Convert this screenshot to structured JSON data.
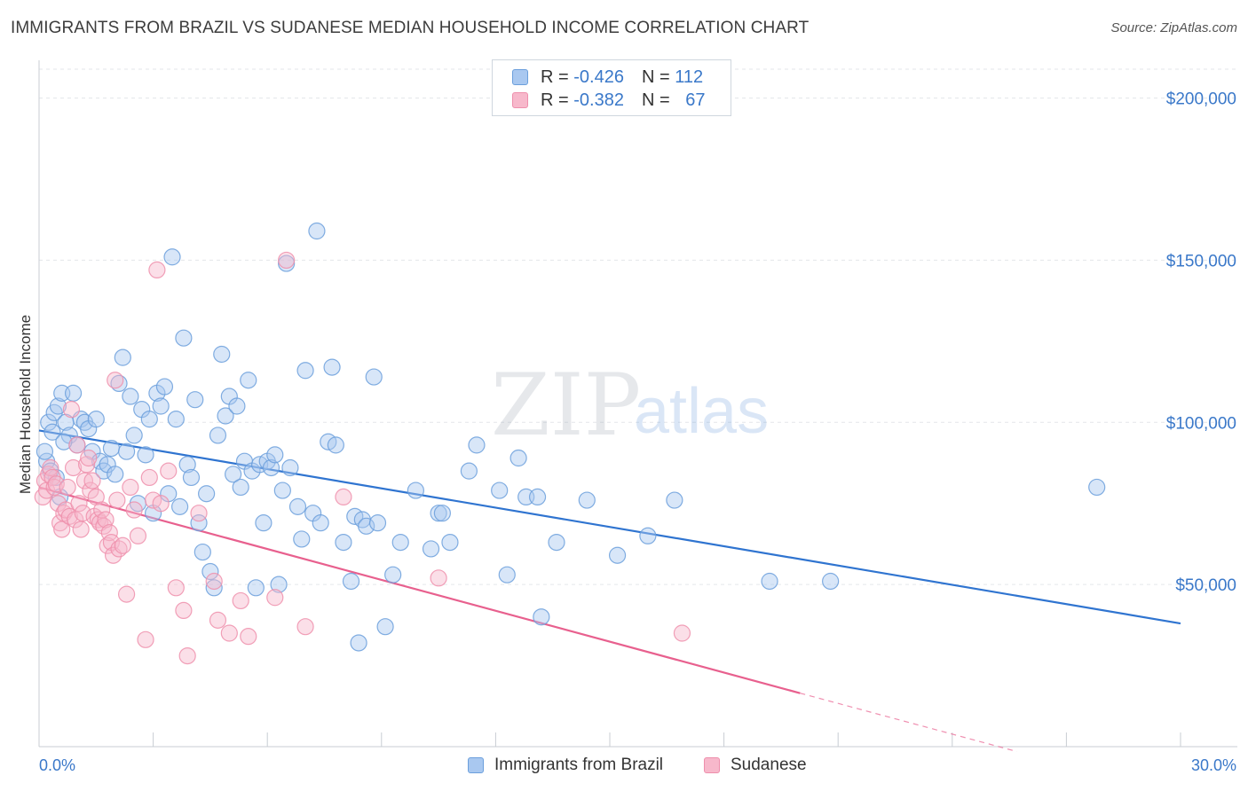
{
  "header": {
    "title": "IMMIGRANTS FROM BRAZIL VS SUDANESE MEDIAN HOUSEHOLD INCOME CORRELATION CHART",
    "source": "Source: ZipAtlas.com"
  },
  "watermark": {
    "zip": "ZIP",
    "atlas": "atlas"
  },
  "legend_stats": [
    {
      "r_label": "R =",
      "r_value": "-0.426",
      "n_label": "N =",
      "n_value": "112"
    },
    {
      "r_label": "R =",
      "r_value": "-0.382",
      "n_label": "N =",
      "n_value": "67"
    }
  ],
  "colors": {
    "brazil_fill": "#a9c8f0",
    "brazil_stroke": "#6b9fdc",
    "brazil_line": "#2f74d0",
    "sudanese_fill": "#f7b8cb",
    "sudanese_stroke": "#ee8fac",
    "sudanese_line": "#e8608e",
    "axis_text": "#3a78c9",
    "grid": "#e3e6ea"
  },
  "chart_data": {
    "type": "scatter",
    "xlabel": "",
    "ylabel": "Median Household Income",
    "xlim": [
      0,
      30
    ],
    "ylim": [
      0,
      210000
    ],
    "x_tick_labels": [
      "0.0%",
      "30.0%"
    ],
    "y_ticks": [
      50000,
      100000,
      150000,
      200000
    ],
    "y_tick_labels": [
      "$50,000",
      "$100,000",
      "$150,000",
      "$200,000"
    ],
    "grid": true,
    "legend_position": "bottom",
    "series": [
      {
        "name": "Immigrants from Brazil",
        "r": -0.426,
        "n": 112,
        "trend": {
          "x0": 0.0,
          "y0": 97500,
          "x1": 30.0,
          "y1": 38000
        },
        "points": [
          [
            0.2,
            88000
          ],
          [
            0.25,
            100000
          ],
          [
            0.3,
            85000
          ],
          [
            0.35,
            97000
          ],
          [
            0.4,
            103000
          ],
          [
            0.5,
            105000
          ],
          [
            0.6,
            109000
          ],
          [
            0.7,
            100000
          ],
          [
            0.8,
            96000
          ],
          [
            0.9,
            109000
          ],
          [
            1.0,
            93000
          ],
          [
            1.1,
            101000
          ],
          [
            1.2,
            100000
          ],
          [
            1.3,
            98000
          ],
          [
            1.4,
            91000
          ],
          [
            1.5,
            101000
          ],
          [
            1.6,
            88000
          ],
          [
            1.7,
            85000
          ],
          [
            1.8,
            87000
          ],
          [
            1.9,
            92000
          ],
          [
            2.0,
            84000
          ],
          [
            2.1,
            112000
          ],
          [
            2.2,
            120000
          ],
          [
            2.3,
            91000
          ],
          [
            2.4,
            108000
          ],
          [
            2.5,
            96000
          ],
          [
            2.6,
            75000
          ],
          [
            2.7,
            104000
          ],
          [
            2.8,
            90000
          ],
          [
            2.9,
            101000
          ],
          [
            3.0,
            72000
          ],
          [
            3.1,
            109000
          ],
          [
            3.2,
            105000
          ],
          [
            3.3,
            111000
          ],
          [
            3.4,
            78000
          ],
          [
            3.5,
            151000
          ],
          [
            3.6,
            101000
          ],
          [
            3.7,
            74000
          ],
          [
            3.8,
            126000
          ],
          [
            3.9,
            87000
          ],
          [
            4.0,
            83000
          ],
          [
            4.1,
            107000
          ],
          [
            4.2,
            69000
          ],
          [
            4.3,
            60000
          ],
          [
            4.4,
            78000
          ],
          [
            4.5,
            54000
          ],
          [
            4.6,
            49000
          ],
          [
            4.7,
            96000
          ],
          [
            4.8,
            121000
          ],
          [
            4.9,
            102000
          ],
          [
            5.0,
            108000
          ],
          [
            5.1,
            84000
          ],
          [
            5.2,
            105000
          ],
          [
            5.3,
            80000
          ],
          [
            5.4,
            88000
          ],
          [
            5.5,
            113000
          ],
          [
            5.6,
            85000
          ],
          [
            5.7,
            49000
          ],
          [
            5.8,
            87000
          ],
          [
            5.9,
            69000
          ],
          [
            6.0,
            88000
          ],
          [
            6.1,
            86000
          ],
          [
            6.2,
            90000
          ],
          [
            6.3,
            50000
          ],
          [
            6.4,
            79000
          ],
          [
            6.5,
            149000
          ],
          [
            6.6,
            86000
          ],
          [
            6.8,
            74000
          ],
          [
            6.9,
            64000
          ],
          [
            7.0,
            116000
          ],
          [
            7.2,
            72000
          ],
          [
            7.3,
            159000
          ],
          [
            7.4,
            69000
          ],
          [
            7.6,
            94000
          ],
          [
            7.7,
            117000
          ],
          [
            7.8,
            93000
          ],
          [
            8.0,
            63000
          ],
          [
            8.2,
            51000
          ],
          [
            8.3,
            71000
          ],
          [
            8.4,
            32000
          ],
          [
            8.5,
            70000
          ],
          [
            8.6,
            68000
          ],
          [
            8.8,
            114000
          ],
          [
            8.9,
            69000
          ],
          [
            9.1,
            37000
          ],
          [
            9.3,
            53000
          ],
          [
            9.5,
            63000
          ],
          [
            9.9,
            79000
          ],
          [
            10.3,
            61000
          ],
          [
            10.5,
            72000
          ],
          [
            10.6,
            72000
          ],
          [
            10.8,
            63000
          ],
          [
            11.3,
            85000
          ],
          [
            11.5,
            93000
          ],
          [
            12.1,
            79000
          ],
          [
            12.3,
            53000
          ],
          [
            12.6,
            89000
          ],
          [
            12.8,
            77000
          ],
          [
            13.1,
            77000
          ],
          [
            13.2,
            40000
          ],
          [
            13.6,
            63000
          ],
          [
            14.4,
            76000
          ],
          [
            15.2,
            59000
          ],
          [
            16.0,
            65000
          ],
          [
            16.7,
            76000
          ],
          [
            19.2,
            51000
          ],
          [
            20.8,
            51000
          ],
          [
            27.8,
            80000
          ],
          [
            0.15,
            91000
          ],
          [
            0.45,
            83000
          ],
          [
            0.55,
            77000
          ],
          [
            0.65,
            94000
          ]
        ]
      },
      {
        "name": "Sudanese",
        "r": -0.382,
        "n": 67,
        "trend": {
          "x0": 0.0,
          "y0": 80000,
          "x1": 20.0,
          "y1": 16500
        },
        "trend_dashed": {
          "x0": 20.0,
          "y0": 16500,
          "x1": 25.7,
          "y1": -1500
        },
        "points": [
          [
            0.1,
            77000
          ],
          [
            0.15,
            82000
          ],
          [
            0.2,
            79000
          ],
          [
            0.25,
            84000
          ],
          [
            0.3,
            86000
          ],
          [
            0.35,
            83000
          ],
          [
            0.4,
            80000
          ],
          [
            0.45,
            81000
          ],
          [
            0.5,
            75000
          ],
          [
            0.55,
            69000
          ],
          [
            0.6,
            67000
          ],
          [
            0.65,
            72000
          ],
          [
            0.7,
            73000
          ],
          [
            0.75,
            80000
          ],
          [
            0.8,
            71000
          ],
          [
            0.85,
            104000
          ],
          [
            0.9,
            86000
          ],
          [
            0.95,
            70000
          ],
          [
            1.0,
            93000
          ],
          [
            1.05,
            75000
          ],
          [
            1.1,
            67000
          ],
          [
            1.15,
            72000
          ],
          [
            1.2,
            82000
          ],
          [
            1.25,
            87000
          ],
          [
            1.3,
            89000
          ],
          [
            1.35,
            79000
          ],
          [
            1.4,
            82000
          ],
          [
            1.45,
            71000
          ],
          [
            1.5,
            77000
          ],
          [
            1.55,
            70000
          ],
          [
            1.6,
            69000
          ],
          [
            1.65,
            73000
          ],
          [
            1.7,
            68000
          ],
          [
            1.75,
            70000
          ],
          [
            1.8,
            62000
          ],
          [
            1.85,
            66000
          ],
          [
            1.9,
            63000
          ],
          [
            1.95,
            59000
          ],
          [
            2.0,
            113000
          ],
          [
            2.05,
            76000
          ],
          [
            2.1,
            61000
          ],
          [
            2.2,
            62000
          ],
          [
            2.3,
            47000
          ],
          [
            2.4,
            80000
          ],
          [
            2.5,
            73000
          ],
          [
            2.6,
            65000
          ],
          [
            2.8,
            33000
          ],
          [
            2.9,
            83000
          ],
          [
            3.0,
            76000
          ],
          [
            3.1,
            147000
          ],
          [
            3.2,
            75000
          ],
          [
            3.4,
            85000
          ],
          [
            3.6,
            49000
          ],
          [
            3.8,
            42000
          ],
          [
            3.9,
            28000
          ],
          [
            4.2,
            72000
          ],
          [
            4.6,
            51000
          ],
          [
            4.7,
            39000
          ],
          [
            5.0,
            35000
          ],
          [
            5.3,
            45000
          ],
          [
            5.5,
            34000
          ],
          [
            6.2,
            46000
          ],
          [
            6.5,
            150000
          ],
          [
            7.0,
            37000
          ],
          [
            8.0,
            77000
          ],
          [
            10.5,
            52000
          ],
          [
            16.9,
            35000
          ]
        ]
      }
    ]
  },
  "bottom_legend": [
    "Immigrants from Brazil",
    "Sudanese"
  ]
}
